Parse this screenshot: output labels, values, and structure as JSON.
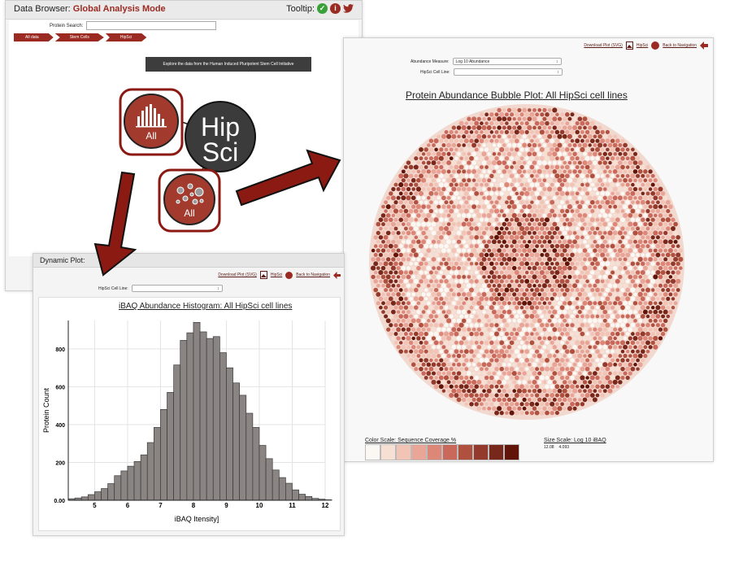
{
  "browser": {
    "title_prefix": "Data Browser:",
    "title_mode": "Global Analysis Mode",
    "tooltip_label": "Tooltip:",
    "search_label": "Protein Search:",
    "search_value": "",
    "breadcrumbs": [
      "All data",
      "Stem Cells",
      "HipSci"
    ],
    "banner": "Explore the data from the Human Induced Pluripotent Stem Cell Initiative",
    "nodes": {
      "all_top": "All",
      "hipsci_line1": "Hip",
      "hipsci_line2": "Sci",
      "all_bottom": "All"
    }
  },
  "histogram_panel": {
    "header": "Dynamic Plot:",
    "links": {
      "download": "Download Plot (SVG)",
      "hipsci": "HipSci",
      "back": "Back to Navigation"
    },
    "cell_line_label": "HipSci Cell Line:",
    "cell_line_value": ""
  },
  "bubble_panel": {
    "links": {
      "download": "Download Plot (SVG)",
      "hipsci": "HipSci",
      "back": "Back to Navigation"
    },
    "abundance_label": "Abundance Measure:",
    "abundance_value": "Log 10 Abundance",
    "cell_line_label": "HipSci Cell Line:",
    "cell_line_value": "",
    "color_scale_label": "Color Scale: Sequence Coverage %",
    "color_scale_swatches": [
      "#fbf7f2",
      "#f6e0d4",
      "#f1c4b6",
      "#e8a598",
      "#dc8778",
      "#c9695c",
      "#b0503f",
      "#933a2c",
      "#78271b",
      "#611509"
    ],
    "size_scale_label": "Size Scale: Log 10 iBAQ",
    "size_scale_values": [
      "12.08",
      "4.093"
    ]
  },
  "colors": {
    "brand": "#9b2a22",
    "bars": "#8a8583"
  },
  "chart_data": [
    {
      "type": "bar",
      "title": "iBAQ Abundance Histogram: All HipSci cell lines",
      "xlabel": "iBAQ Itensity]",
      "ylabel": "Protein Count",
      "xlim": [
        4.2,
        12.0
      ],
      "ylim": [
        0,
        950
      ],
      "x_ticks": [
        5,
        6,
        7,
        8,
        9,
        10,
        11,
        12
      ],
      "y_ticks": [
        0,
        200,
        400,
        600,
        800
      ],
      "y_tick_labels": [
        "0.00",
        "200",
        "400",
        "600",
        "800"
      ],
      "bin_width": 0.2,
      "bin_start": 4.2,
      "values": [
        8,
        12,
        18,
        30,
        45,
        62,
        88,
        130,
        155,
        180,
        205,
        240,
        305,
        385,
        480,
        570,
        715,
        845,
        885,
        940,
        890,
        855,
        865,
        780,
        700,
        620,
        555,
        460,
        385,
        290,
        220,
        160,
        120,
        90,
        55,
        32,
        20,
        10,
        6,
        3
      ],
      "grid": true
    },
    {
      "type": "scatter",
      "title": "Protein Abundance Bubble Plot: All HipSci cell lines",
      "grid": false
    }
  ]
}
